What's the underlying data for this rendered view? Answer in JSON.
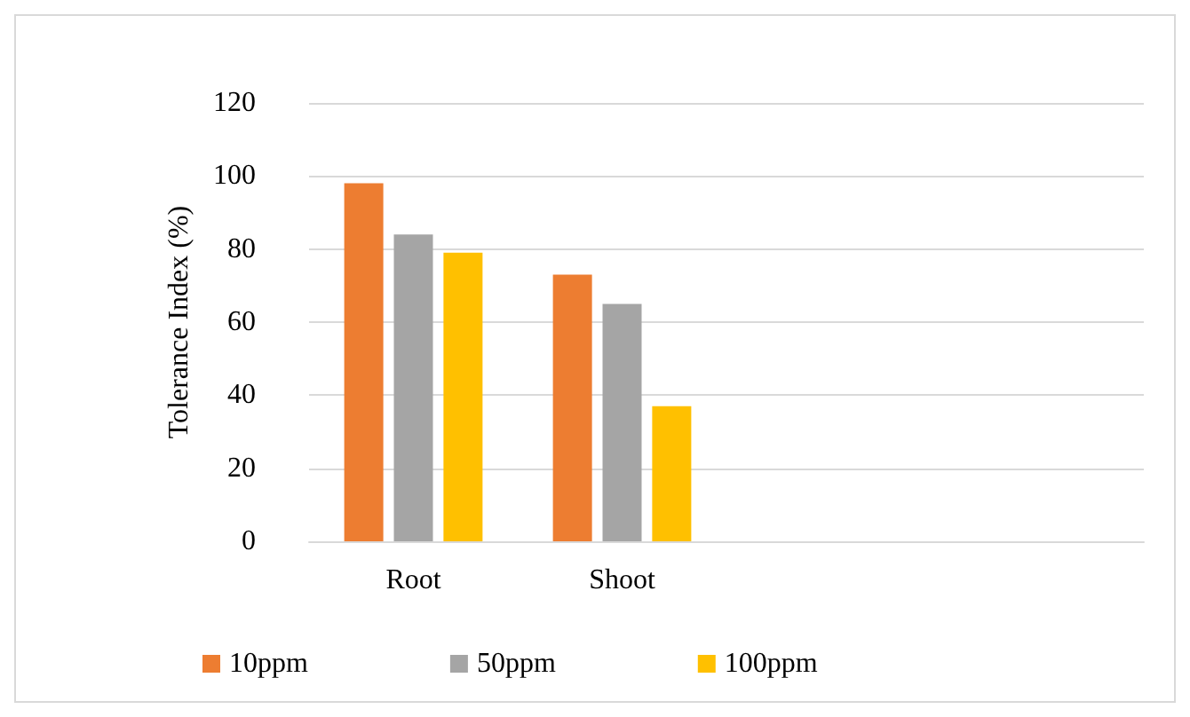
{
  "chart_data": {
    "type": "bar",
    "ylabel": "Tolerance Index (%)",
    "categories": [
      "Root",
      "Shoot",
      null,
      null
    ],
    "series": [
      {
        "name": "10ppm",
        "color": "#ed7d31",
        "values": [
          98,
          73,
          null,
          null
        ]
      },
      {
        "name": "50ppm",
        "color": "#a5a5a5",
        "values": [
          84,
          65,
          null,
          null
        ]
      },
      {
        "name": "100ppm",
        "color": "#ffc000",
        "values": [
          79,
          37,
          null,
          null
        ]
      }
    ],
    "ylim": [
      0,
      120
    ],
    "yticks": [
      0,
      20,
      40,
      60,
      80,
      100,
      120
    ],
    "grid": "y",
    "legend": "bottom"
  }
}
